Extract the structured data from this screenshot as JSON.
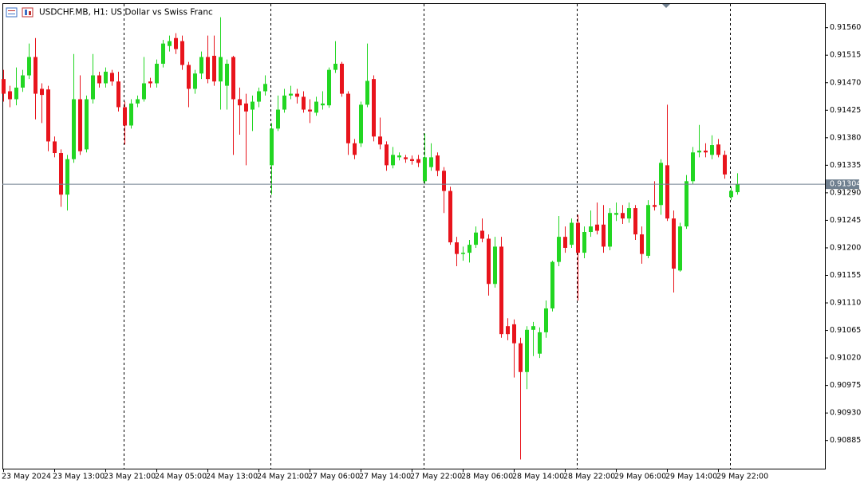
{
  "chart_data": {
    "type": "candlestick",
    "title": "USDCHF.MB, H1:  US Dollar vs Swiss Franc",
    "categories": [
      "23 May 2024",
      null,
      null,
      null,
      null,
      null,
      null,
      null,
      "23 May 13:00",
      null,
      null,
      null,
      null,
      null,
      null,
      null,
      "23 May 21:00",
      null,
      null,
      null,
      null,
      null,
      null,
      null,
      "24 May 05:00",
      null,
      null,
      null,
      null,
      null,
      null,
      null,
      "24 May 13:00",
      null,
      null,
      null,
      null,
      null,
      null,
      null,
      "24 May 21:00",
      null,
      null,
      null,
      null,
      null,
      null,
      null,
      "27 May 06:00",
      null,
      null,
      null,
      null,
      null,
      null,
      null,
      "27 May 14:00",
      null,
      null,
      null,
      null,
      null,
      null,
      null,
      "27 May 22:00",
      null,
      null,
      null,
      null,
      null,
      null,
      null,
      "28 May 06:00",
      null,
      null,
      null,
      null,
      null,
      null,
      null,
      "28 May 14:00",
      null,
      null,
      null,
      null,
      null,
      null,
      null,
      "28 May 22:00",
      null,
      null,
      null,
      null,
      null,
      null,
      null,
      "29 May 06:00",
      null,
      null,
      null,
      null,
      null,
      null,
      null,
      "29 May 14:00",
      null,
      null,
      null,
      null,
      null,
      null,
      null,
      "29 May 22:00",
      null,
      null,
      null
    ],
    "open": [
      0.91476,
      0.91456,
      0.91443,
      0.91462,
      0.91482,
      0.91512,
      0.9146,
      0.91459,
      0.91374,
      0.91355,
      0.91287,
      0.91345,
      0.91443,
      0.91361,
      0.91443,
      0.91482,
      0.91469,
      0.91486,
      0.91472,
      0.9143,
      0.914,
      0.91436,
      0.91443,
      0.91472,
      0.91469,
      0.91501,
      0.9153,
      0.91543,
      0.91538,
      0.91499,
      0.9146,
      0.91485,
      0.91512,
      0.91514,
      0.91472,
      0.91465,
      0.91512,
      0.91443,
      0.91436,
      0.91426,
      0.91439,
      0.91456,
      0.91335,
      0.91395,
      0.91426,
      0.91449,
      0.91452,
      0.91447,
      0.91426,
      0.91421,
      0.91433,
      0.91433,
      0.91491,
      0.91501,
      0.91452,
      0.91371,
      0.91371,
      0.91434,
      0.91476,
      0.91382,
      0.91369,
      0.91335,
      0.91348,
      0.91348,
      0.91345,
      0.91345,
      0.91309,
      0.91332,
      0.91351,
      0.91326,
      0.91293,
      0.91209,
      0.9119,
      0.91192,
      0.91205,
      0.91228,
      0.91215,
      0.91141,
      0.91202,
      0.91072,
      0.91075,
      0.91044,
      0.90997,
      0.91066,
      0.91027,
      0.91062,
      0.91101,
      0.91177,
      0.91218,
      0.91205,
      0.91241,
      0.91192,
      0.91226,
      0.91238,
      0.91238,
      0.91202,
      0.91254,
      0.91257,
      0.91248,
      0.91265,
      0.91222,
      0.91187,
      0.9127,
      0.9127,
      0.91335,
      0.91248,
      0.91163,
      0.91235,
      0.91309,
      0.91356,
      0.91359,
      0.91352,
      0.91369,
      0.91352,
      0.91283,
      0.91291
    ],
    "high": [
      0.91491,
      0.91465,
      0.91495,
      0.91491,
      0.91534,
      0.91543,
      0.91469,
      0.91465,
      0.91382,
      0.91361,
      0.91352,
      0.91517,
      0.91482,
      0.91449,
      0.91517,
      0.91488,
      0.91495,
      0.91491,
      0.91488,
      0.91439,
      0.91443,
      0.91449,
      0.91512,
      0.91478,
      0.91508,
      0.9154,
      0.91547,
      0.91551,
      0.91547,
      0.91504,
      0.91491,
      0.91521,
      0.91547,
      0.91547,
      0.91577,
      0.91508,
      0.91514,
      0.91462,
      0.91452,
      0.91449,
      0.91462,
      0.91482,
      0.91404,
      0.91449,
      0.9146,
      0.91465,
      0.9146,
      0.91456,
      0.91443,
      0.91447,
      0.91456,
      0.91495,
      0.91538,
      0.91504,
      0.91456,
      0.91378,
      0.91439,
      0.91534,
      0.91482,
      0.91413,
      0.91374,
      0.91365,
      0.91356,
      0.91352,
      0.91351,
      0.91352,
      0.91387,
      0.91371,
      0.91356,
      0.91332,
      0.913,
      0.91218,
      0.91202,
      0.91213,
      0.91235,
      0.91248,
      0.91222,
      0.91218,
      0.91218,
      0.91085,
      0.91083,
      0.91053,
      0.91072,
      0.91079,
      0.9107,
      0.91114,
      0.91179,
      0.91252,
      0.91235,
      0.91248,
      0.91254,
      0.91235,
      0.91261,
      0.91274,
      0.9127,
      0.91265,
      0.91274,
      0.9127,
      0.91274,
      0.9127,
      0.91235,
      0.91278,
      0.91309,
      0.91345,
      0.91434,
      0.91261,
      0.91241,
      0.91319,
      0.91365,
      0.91401,
      0.91371,
      0.91384,
      0.91378,
      0.91359,
      0.913,
      0.91322
    ],
    "low": [
      0.91439,
      0.9143,
      0.91433,
      0.91455,
      0.91476,
      0.9141,
      0.91404,
      0.91358,
      0.91348,
      0.91267,
      0.91261,
      0.91339,
      0.91352,
      0.91356,
      0.91436,
      0.91462,
      0.91462,
      0.91465,
      0.91423,
      0.91369,
      0.91395,
      0.9143,
      0.91439,
      0.91462,
      0.91462,
      0.91495,
      0.91521,
      0.91517,
      0.91491,
      0.9143,
      0.91452,
      0.91476,
      0.91469,
      0.91465,
      0.91426,
      0.91426,
      0.91352,
      0.91385,
      0.91335,
      0.91391,
      0.9143,
      0.91449,
      0.91287,
      0.91391,
      0.91421,
      0.91443,
      0.91436,
      0.91421,
      0.91404,
      0.91416,
      0.91426,
      0.91429,
      0.91486,
      0.91447,
      0.91352,
      0.91345,
      0.91365,
      0.9143,
      0.91374,
      0.91361,
      0.91326,
      0.9133,
      0.91343,
      0.91339,
      0.91336,
      0.91332,
      0.91304,
      0.91326,
      0.91317,
      0.91257,
      0.91205,
      0.9117,
      0.91179,
      0.91176,
      0.912,
      0.91209,
      0.91122,
      0.91135,
      0.91053,
      0.91049,
      0.90988,
      0.90854,
      0.90969,
      0.91023,
      0.9102,
      0.91053,
      0.91096,
      0.9117,
      0.91192,
      0.912,
      0.91114,
      0.91183,
      0.91218,
      0.91222,
      0.91192,
      0.91196,
      0.91244,
      0.91239,
      0.91241,
      0.91213,
      0.91174,
      0.91183,
      0.91261,
      0.91254,
      0.91244,
      0.91127,
      0.91161,
      0.91231,
      0.91304,
      0.91348,
      0.91348,
      0.91345,
      0.91348,
      0.91313,
      0.91278,
      0.91287
    ],
    "close": [
      0.91452,
      0.91443,
      0.91462,
      0.91482,
      0.91512,
      0.91452,
      0.9145,
      0.91374,
      0.91355,
      0.91287,
      0.91345,
      0.91443,
      0.91358,
      0.91443,
      0.91482,
      0.91469,
      0.91488,
      0.91472,
      0.9143,
      0.914,
      0.91436,
      0.91443,
      0.91469,
      0.91469,
      0.91501,
      0.91534,
      0.91538,
      0.91525,
      0.91499,
      0.9146,
      0.91485,
      0.91512,
      0.91476,
      0.91472,
      0.91512,
      0.91501,
      0.91443,
      0.91433,
      0.91423,
      0.91439,
      0.91456,
      0.91468,
      0.91395,
      0.91426,
      0.91449,
      0.91452,
      0.91447,
      0.91426,
      0.91423,
      0.91439,
      0.91436,
      0.91491,
      0.91501,
      0.91452,
      0.91371,
      0.91352,
      0.91434,
      0.91473,
      0.91382,
      0.91369,
      0.91335,
      0.91352,
      0.91351,
      0.91345,
      0.91342,
      0.91339,
      0.91348,
      0.91348,
      0.91326,
      0.91293,
      0.91209,
      0.9119,
      0.91192,
      0.91205,
      0.91225,
      0.91215,
      0.91141,
      0.91202,
      0.91059,
      0.91059,
      0.91044,
      0.90997,
      0.91066,
      0.91072,
      0.91062,
      0.91101,
      0.91177,
      0.91218,
      0.912,
      0.91241,
      0.91192,
      0.91226,
      0.91235,
      0.91228,
      0.91202,
      0.91257,
      0.91257,
      0.91248,
      0.91265,
      0.91222,
      0.9119,
      0.9127,
      0.91267,
      0.91339,
      0.91248,
      0.91166,
      0.91235,
      0.91309,
      0.91356,
      0.91359,
      0.91356,
      0.91368,
      0.91352,
      0.9132,
      0.91293,
      0.91304
    ],
    "up_color": "#22d622",
    "down_color": "#e8141c",
    "last_price": 0.91304,
    "ylim": [
      0.90839,
      0.916
    ],
    "yticks": [
      {
        "value": 0.9156,
        "label": "0.91560"
      },
      0.91515,
      {
        "value": 0.9147,
        "label": "0.91470"
      },
      0.91425,
      {
        "value": 0.9138,
        "label": "0.91380"
      },
      0.91335,
      {
        "value": 0.9129,
        "label": "0.91290"
      },
      0.91245,
      {
        "value": 0.912,
        "label": "0.91200"
      },
      0.91155,
      {
        "value": 0.9111,
        "label": "0.91110"
      },
      0.91065,
      {
        "value": 0.9102,
        "label": "0.91020"
      },
      0.90975,
      {
        "value": 0.9093,
        "label": "0.90930"
      },
      0.90885
    ]
  }
}
